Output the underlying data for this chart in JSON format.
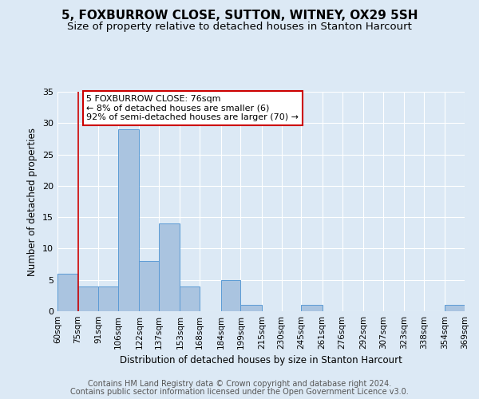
{
  "title": "5, FOXBURROW CLOSE, SUTTON, WITNEY, OX29 5SH",
  "subtitle": "Size of property relative to detached houses in Stanton Harcourt",
  "xlabel": "Distribution of detached houses by size in Stanton Harcourt",
  "ylabel": "Number of detached properties",
  "bin_labels": [
    "60sqm",
    "75sqm",
    "91sqm",
    "106sqm",
    "122sqm",
    "137sqm",
    "153sqm",
    "168sqm",
    "184sqm",
    "199sqm",
    "215sqm",
    "230sqm",
    "245sqm",
    "261sqm",
    "276sqm",
    "292sqm",
    "307sqm",
    "323sqm",
    "338sqm",
    "354sqm",
    "369sqm"
  ],
  "bin_edges": [
    60,
    75,
    91,
    106,
    122,
    137,
    153,
    168,
    184,
    199,
    215,
    230,
    245,
    261,
    276,
    292,
    307,
    323,
    338,
    354,
    369
  ],
  "bar_heights": [
    6,
    4,
    4,
    29,
    8,
    14,
    4,
    0,
    5,
    1,
    0,
    0,
    1,
    0,
    0,
    0,
    0,
    0,
    0,
    1
  ],
  "bar_color": "#aac4e0",
  "bar_edge_color": "#5b9bd5",
  "property_line_x": 76,
  "annotation_text": "5 FOXBURROW CLOSE: 76sqm\n← 8% of detached houses are smaller (6)\n92% of semi-detached houses are larger (70) →",
  "annotation_box_edge": "#cc0000",
  "annotation_box_face": "#ffffff",
  "vline_color": "#cc0000",
  "ylim": [
    0,
    35
  ],
  "yticks": [
    0,
    5,
    10,
    15,
    20,
    25,
    30,
    35
  ],
  "footer1": "Contains HM Land Registry data © Crown copyright and database right 2024.",
  "footer2": "Contains public sector information licensed under the Open Government Licence v3.0.",
  "background_color": "#dce9f5",
  "plot_background_color": "#dce9f5",
  "grid_color": "#ffffff",
  "title_fontsize": 11,
  "subtitle_fontsize": 9.5,
  "footer_fontsize": 7
}
